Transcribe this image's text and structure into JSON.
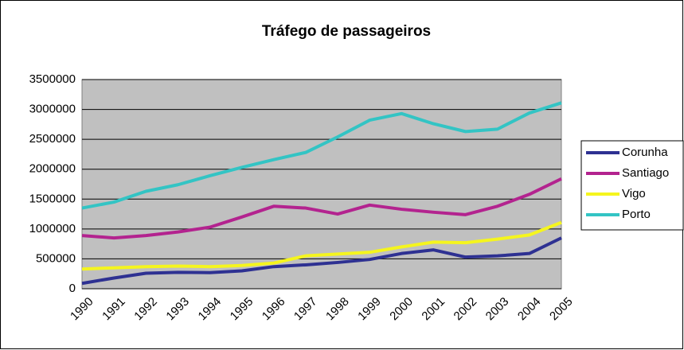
{
  "chart_data": {
    "type": "line",
    "title": "Tráfego de passageiros",
    "categories": [
      "1990",
      "1991",
      "1992",
      "1993",
      "1994",
      "1995",
      "1996",
      "1997",
      "1998",
      "1999",
      "2000",
      "2001",
      "2002",
      "2003",
      "2004",
      "2005"
    ],
    "series": [
      {
        "name": "Corunha",
        "color": "#2e3192",
        "values": [
          90000,
          180000,
          260000,
          275000,
          270000,
          300000,
          370000,
          400000,
          440000,
          490000,
          590000,
          650000,
          530000,
          550000,
          590000,
          850000
        ]
      },
      {
        "name": "Santiago",
        "color": "#b3238f",
        "values": [
          890000,
          850000,
          890000,
          950000,
          1030000,
          1200000,
          1380000,
          1350000,
          1250000,
          1400000,
          1330000,
          1280000,
          1240000,
          1380000,
          1580000,
          1840000
        ]
      },
      {
        "name": "Vigo",
        "color": "#f5f51e",
        "values": [
          330000,
          350000,
          370000,
          380000,
          370000,
          390000,
          430000,
          550000,
          580000,
          610000,
          700000,
          780000,
          770000,
          830000,
          900000,
          1110000
        ]
      },
      {
        "name": "Porto",
        "color": "#33c4c4",
        "values": [
          1350000,
          1450000,
          1630000,
          1740000,
          1890000,
          2030000,
          2160000,
          2280000,
          2540000,
          2820000,
          2930000,
          2760000,
          2630000,
          2670000,
          2940000,
          3110000
        ]
      }
    ],
    "ylim": [
      0,
      3500000
    ],
    "yticks": [
      0,
      500000,
      1000000,
      1500000,
      2000000,
      2500000,
      3000000,
      3500000
    ],
    "grid": true,
    "legend": "right"
  }
}
